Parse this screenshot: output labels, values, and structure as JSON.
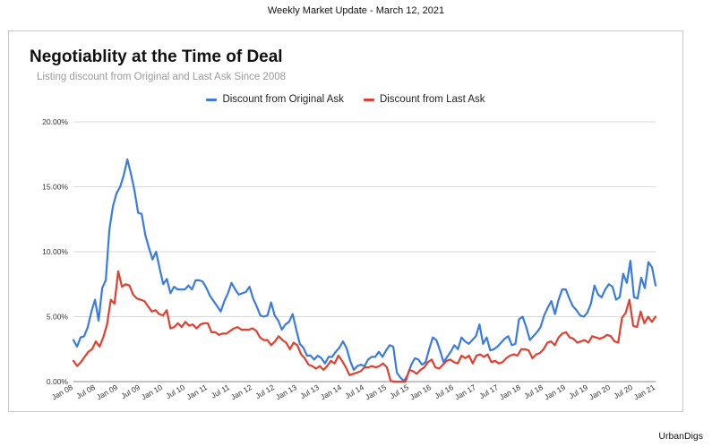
{
  "header": {
    "text": "Weekly Market Update - March 12, 2021"
  },
  "footer": {
    "brand": "UrbanDigs"
  },
  "chart_data": {
    "type": "line",
    "title": "Negotiablity at the Time of Deal",
    "subtitle": "Listing discount from Original and Last Ask Since 2008",
    "legend_position": "top",
    "grid": true,
    "ylim": [
      0,
      20
    ],
    "y_ticks": [
      0,
      5,
      10,
      15,
      20
    ],
    "y_tick_labels": [
      "0.00%",
      "5.00%",
      "10.00%",
      "15.00%",
      "20.00%"
    ],
    "x_tick_labels": [
      "Jan 08",
      "Jul 08",
      "Jan 09",
      "Jul 09",
      "Jan 10",
      "Jul 10",
      "Jan 11",
      "Jul 11",
      "Jan 12",
      "Jul 12",
      "Jan 13",
      "Jul 13",
      "Jan 14",
      "Jul 14",
      "Jan 15",
      "Jul 15",
      "Jan 16",
      "Jul 16",
      "Jan 17",
      "Jul 17",
      "Jan 18",
      "Jul 18",
      "Jan 19",
      "Jul 19",
      "Jan 20",
      "Jul 20",
      "Jan 21"
    ],
    "series": [
      {
        "name": "Discount from Original Ask",
        "color": "#3a7be0",
        "values": [
          3.2,
          2.7,
          3.4,
          3.5,
          4.2,
          5.4,
          6.3,
          4.7,
          7.2,
          7.8,
          11.7,
          13.5,
          14.5,
          15.0,
          15.9,
          17.1,
          16.0,
          14.7,
          13.0,
          12.9,
          11.3,
          10.3,
          9.4,
          10.0,
          8.7,
          7.5,
          7.9,
          6.8,
          7.3,
          7.1,
          7.1,
          7.1,
          7.4,
          7.1,
          7.8,
          7.8,
          7.7,
          7.2,
          6.6,
          6.2,
          5.8,
          5.4,
          6.2,
          6.8,
          7.6,
          7.1,
          6.7,
          6.8,
          6.9,
          7.3,
          6.4,
          5.8,
          5.1,
          5.0,
          5.1,
          6.1,
          5.1,
          4.7,
          4.0,
          4.4,
          4.6,
          5.2,
          4.0,
          2.9,
          2.6,
          2.0,
          2.0,
          1.7,
          2.0,
          1.8,
          1.4,
          1.9,
          1.9,
          2.3,
          2.6,
          3.1,
          2.6,
          1.6,
          0.9,
          1.2,
          1.3,
          1.2,
          1.7,
          1.9,
          1.9,
          2.3,
          1.9,
          2.4,
          2.8,
          2.7,
          0.7,
          0.3,
          0.05,
          0.5,
          1.3,
          1.8,
          1.7,
          1.3,
          1.5,
          2.5,
          3.4,
          3.2,
          2.4,
          1.5,
          1.9,
          2.3,
          2.8,
          2.5,
          3.4,
          3.1,
          2.9,
          3.2,
          3.5,
          4.4,
          2.9,
          3.4,
          2.4,
          2.5,
          2.7,
          3.0,
          3.3,
          3.5,
          2.8,
          2.9,
          4.8,
          5.0,
          4.2,
          3.2,
          3.5,
          3.8,
          4.2,
          5.1,
          5.7,
          6.2,
          5.2,
          6.3,
          7.1,
          7.1,
          6.4,
          5.8,
          5.5,
          5.1,
          5.0,
          5.3,
          6.0,
          7.4,
          6.7,
          6.5,
          7.1,
          7.5,
          7.3,
          6.3,
          6.5,
          8.3,
          7.6,
          9.3,
          6.5,
          6.4,
          8.0,
          7.2,
          9.2,
          8.8,
          7.4
        ]
      },
      {
        "name": "Discount from Last Ask",
        "color": "#e0402f",
        "values": [
          1.6,
          1.2,
          1.5,
          1.9,
          2.3,
          2.5,
          3.1,
          2.7,
          3.4,
          4.4,
          6.3,
          6.0,
          8.5,
          7.3,
          7.5,
          7.4,
          6.7,
          6.4,
          6.3,
          6.2,
          5.8,
          5.4,
          5.5,
          5.2,
          5.1,
          5.5,
          4.1,
          4.2,
          4.5,
          4.2,
          4.6,
          4.3,
          4.4,
          4.1,
          4.4,
          4.5,
          4.5,
          3.8,
          3.8,
          3.6,
          3.7,
          3.7,
          3.9,
          4.1,
          4.2,
          4.0,
          4.0,
          4.0,
          4.1,
          3.9,
          3.4,
          3.2,
          3.2,
          2.8,
          3.1,
          3.5,
          3.2,
          3.0,
          2.5,
          3.0,
          2.8,
          2.1,
          1.8,
          1.3,
          1.2,
          1.0,
          1.2,
          0.9,
          1.2,
          1.6,
          1.4,
          2.0,
          1.6,
          1.1,
          0.5,
          0.6,
          0.7,
          0.8,
          1.1,
          1.1,
          1.2,
          1.1,
          1.2,
          1.4,
          1.1,
          0.05,
          0.0,
          0.0,
          0.0,
          0.0,
          0.9,
          0.8,
          0.6,
          0.9,
          1.1,
          1.5,
          1.7,
          1.1,
          1.0,
          1.3,
          1.6,
          1.7,
          1.5,
          1.4,
          2.0,
          1.8,
          2.0,
          1.4,
          2.0,
          2.1,
          1.9,
          2.1,
          1.5,
          1.6,
          1.4,
          1.5,
          1.8,
          2.0,
          2.1,
          2.0,
          2.5,
          2.5,
          2.4,
          1.8,
          2.1,
          2.2,
          2.5,
          3.0,
          3.1,
          2.8,
          3.4,
          3.7,
          3.8,
          3.4,
          3.3,
          3.0,
          3.1,
          3.2,
          3.0,
          3.5,
          3.4,
          3.3,
          3.4,
          3.6,
          3.5,
          3.1,
          3.0,
          4.9,
          5.3,
          6.3,
          4.3,
          4.2,
          5.4,
          4.5,
          5.0,
          4.6,
          5.0
        ]
      }
    ]
  }
}
